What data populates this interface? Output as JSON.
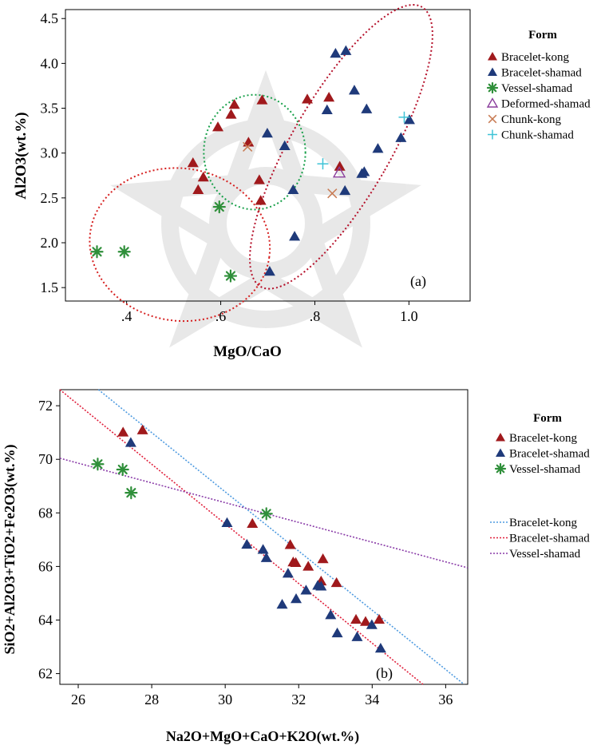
{
  "chart_data": [
    {
      "type": "scatter",
      "panel_label": "(a)",
      "xlabel": "MgO/CaO",
      "ylabel": "Al2O3(wt.%)",
      "xlim": [
        0.27,
        1.13
      ],
      "ylim": [
        1.35,
        4.6
      ],
      "x_ticks": [
        ".4",
        ".6",
        ".8",
        "1.0"
      ],
      "y_ticks": [
        "1.5",
        "2.0",
        "2.5",
        "3.0",
        "3.5",
        "4.0",
        "4.5"
      ],
      "legend_title": "Form",
      "legend_position": "right",
      "series": [
        {
          "name": "Bracelet-kong",
          "marker": "triangle-filled",
          "color": "#a0191c",
          "x": [
            0.541,
            0.552,
            0.563,
            0.594,
            0.622,
            0.629,
            0.659,
            0.682,
            0.685,
            0.688,
            0.784,
            0.83,
            0.853
          ],
          "y": [
            2.89,
            2.59,
            2.73,
            3.29,
            3.43,
            3.54,
            3.12,
            2.7,
            2.47,
            3.59,
            3.6,
            3.62,
            2.85
          ]
        },
        {
          "name": "Bracelet-shamad",
          "marker": "triangle-filled",
          "color": "#1f3a7a",
          "x": [
            0.699,
            0.704,
            0.736,
            0.754,
            0.757,
            0.826,
            0.844,
            0.864,
            0.866,
            0.884,
            0.9,
            0.905,
            0.91,
            0.934,
            0.983,
            1.001
          ],
          "y": [
            3.22,
            1.68,
            3.08,
            2.59,
            2.07,
            3.48,
            4.11,
            2.58,
            4.14,
            3.7,
            2.77,
            2.79,
            3.49,
            3.05,
            3.17,
            3.37
          ]
        },
        {
          "name": "Vessel-shamad",
          "marker": "asterisk",
          "color": "#2f8f3a",
          "x": [
            0.337,
            0.395,
            0.597,
            0.621
          ],
          "y": [
            1.9,
            1.9,
            2.4,
            1.63
          ]
        },
        {
          "name": "Deformed-shamad",
          "marker": "triangle-open",
          "color": "#8a3d9c",
          "x": [
            0.852
          ],
          "y": [
            2.78
          ]
        },
        {
          "name": "Chunk-kong",
          "marker": "x",
          "color": "#c87a52",
          "x": [
            0.657,
            0.837
          ],
          "y": [
            3.07,
            2.55
          ]
        },
        {
          "name": "Chunk-shamad",
          "marker": "plus",
          "color": "#3ec3d6",
          "x": [
            0.817,
            0.99
          ],
          "y": [
            2.88,
            3.4
          ]
        }
      ],
      "ellipses": [
        {
          "color": "#d62020",
          "cx": 0.513,
          "cy": 1.98,
          "rx": 0.192,
          "ry": 0.85,
          "rotate": 8
        },
        {
          "color": "#18a04a",
          "cx": 0.672,
          "cy": 3.01,
          "rx": 0.108,
          "ry": 0.64,
          "rotate": 0
        },
        {
          "color": "#b5102a",
          "cx": 0.856,
          "cy": 3.07,
          "rx": 0.105,
          "ry": 1.8,
          "rotate": 30
        }
      ]
    },
    {
      "type": "scatter",
      "panel_label": "(b)",
      "xlabel": "Na2O+MgO+CaO+K2O(wt.%)",
      "ylabel": "SiO2+Al2O3+TiO2+Fe2O3(wt.%)",
      "xlim": [
        25.5,
        36.6
      ],
      "ylim": [
        61.6,
        72.6
      ],
      "x_ticks": [
        "26",
        "28",
        "30",
        "32",
        "34",
        "36"
      ],
      "y_ticks": [
        "62",
        "64",
        "66",
        "68",
        "70",
        "72"
      ],
      "legend_title": "Form",
      "legend_position": "right",
      "series": [
        {
          "name": "Bracelet-kong",
          "marker": "triangle-filled",
          "color": "#a0191c",
          "x": [
            27.22,
            27.75,
            30.74,
            31.77,
            31.92,
            31.85,
            32.26,
            32.66,
            32.61,
            33.03,
            33.56,
            33.82,
            34.19
          ],
          "y": [
            71.01,
            71.09,
            67.6,
            66.81,
            66.14,
            66.16,
            66.0,
            66.28,
            65.45,
            65.39,
            64.02,
            63.94,
            64.02
          ]
        },
        {
          "name": "Bracelet-shamad",
          "marker": "triangle-filled",
          "color": "#1f3a7a",
          "x": [
            27.43,
            30.05,
            30.59,
            31.03,
            31.12,
            31.71,
            31.55,
            31.93,
            32.2,
            32.52,
            32.61,
            32.87,
            33.05,
            33.59,
            33.99,
            34.23
          ],
          "y": [
            70.62,
            67.63,
            66.82,
            66.63,
            66.32,
            65.74,
            64.58,
            64.79,
            65.11,
            65.29,
            65.26,
            64.19,
            63.51,
            63.37,
            63.82,
            62.94
          ]
        },
        {
          "name": "Vessel-shamad",
          "marker": "asterisk",
          "color": "#2f8f3a",
          "x": [
            26.53,
            27.21,
            27.44,
            31.12
          ],
          "y": [
            69.82,
            69.62,
            68.75,
            67.97
          ]
        }
      ],
      "trend_lines": [
        {
          "name": "Bracelet-kong",
          "color": "#4f9be0",
          "x": [
            26.55,
            36.5
          ],
          "y": [
            72.6,
            61.6
          ]
        },
        {
          "name": "Bracelet-shamad",
          "color": "#e0203c",
          "x": [
            25.5,
            35.38
          ],
          "y": [
            72.6,
            61.6
          ]
        },
        {
          "name": "Vessel-shamad",
          "color": "#8a3ca8",
          "x": [
            25.5,
            36.6
          ],
          "y": [
            70.04,
            65.95
          ]
        }
      ]
    }
  ]
}
